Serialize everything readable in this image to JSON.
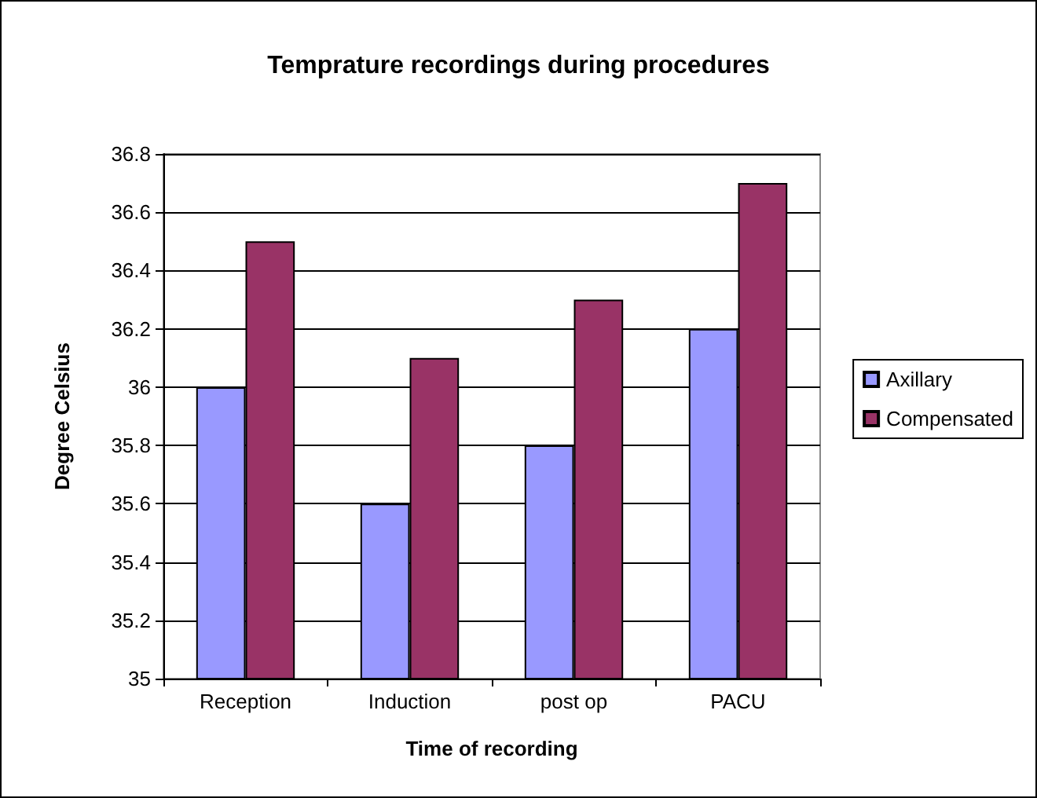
{
  "chart_data": {
    "type": "bar",
    "title": "Temprature recordings during procedures",
    "xlabel": "Time of recording",
    "ylabel": "Degree Celsius",
    "categories": [
      "Reception",
      "Induction",
      "post op",
      "PACU"
    ],
    "series": [
      {
        "name": "Axillary",
        "color": "#9999ff",
        "values": [
          36,
          35.6,
          35.8,
          36.2
        ]
      },
      {
        "name": "Compensated",
        "color": "#993366",
        "values": [
          36.5,
          36.1,
          36.3,
          36.7
        ]
      }
    ],
    "ylim": [
      35,
      36.8
    ],
    "yticks": [
      35,
      35.2,
      35.4,
      35.6,
      35.8,
      36,
      36.2,
      36.4,
      36.6,
      36.8
    ],
    "grid": "y",
    "legend": "right"
  }
}
